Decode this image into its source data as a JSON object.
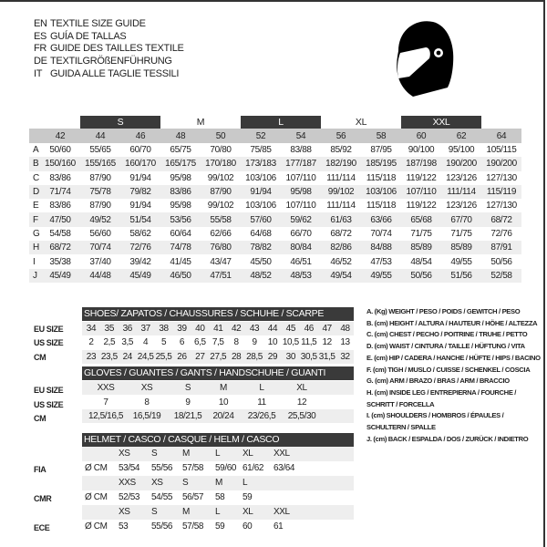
{
  "title": {
    "lines": [
      {
        "code": "EN",
        "text": "TEXTILE SIZE GUIDE"
      },
      {
        "code": "ES",
        "text": "GUÍA DE TALLAS"
      },
      {
        "code": "FR",
        "text": "GUIDE DES TAILLES TEXTILE"
      },
      {
        "code": "DE",
        "text": "TEXTILGRÖßENFÜHRUNG"
      },
      {
        "code": "IT",
        "text": "GUIDA ALLE TAGLIE TESSILI"
      }
    ]
  },
  "icon": "helmet-icon",
  "textile": {
    "bands": [
      {
        "label": "S",
        "dark": true
      },
      {
        "label": "M",
        "dark": false
      },
      {
        "label": "L",
        "dark": true
      },
      {
        "label": "XL",
        "dark": false
      },
      {
        "label": "XXL",
        "dark": true
      }
    ],
    "sizes": [
      "42",
      "44",
      "46",
      "48",
      "50",
      "52",
      "54",
      "56",
      "58",
      "60",
      "62",
      "64"
    ],
    "rows": [
      {
        "letter": "A",
        "values": [
          "50/60",
          "55/65",
          "60/70",
          "65/75",
          "70/80",
          "75/85",
          "83/88",
          "85/92",
          "87/95",
          "90/100",
          "95/100",
          "105/115"
        ]
      },
      {
        "letter": "B",
        "values": [
          "150/160",
          "155/165",
          "160/170",
          "165/175",
          "170/180",
          "173/183",
          "177/187",
          "182/190",
          "185/195",
          "187/198",
          "190/200",
          "190/200"
        ]
      },
      {
        "letter": "C",
        "values": [
          "83/86",
          "87/90",
          "91/94",
          "95/98",
          "99/102",
          "103/106",
          "107/110",
          "111/114",
          "115/118",
          "119/122",
          "123/126",
          "127/130"
        ]
      },
      {
        "letter": "D",
        "values": [
          "71/74",
          "75/78",
          "79/82",
          "83/86",
          "87/90",
          "91/94",
          "95/98",
          "99/102",
          "103/106",
          "107/110",
          "111/114",
          "115/119"
        ]
      },
      {
        "letter": "E",
        "values": [
          "83/86",
          "87/90",
          "91/94",
          "95/98",
          "99/102",
          "103/106",
          "107/110",
          "111/114",
          "115/118",
          "119/122",
          "123/126",
          "127/130"
        ]
      },
      {
        "letter": "F",
        "values": [
          "47/50",
          "49/52",
          "51/54",
          "53/56",
          "55/58",
          "57/60",
          "59/62",
          "61/63",
          "63/66",
          "65/68",
          "67/70",
          "68/72"
        ]
      },
      {
        "letter": "G",
        "values": [
          "54/58",
          "56/60",
          "58/62",
          "60/64",
          "62/66",
          "64/68",
          "66/70",
          "68/72",
          "70/74",
          "71/75",
          "71/75",
          "72/76"
        ]
      },
      {
        "letter": "H",
        "values": [
          "68/72",
          "70/74",
          "72/76",
          "74/78",
          "76/80",
          "78/82",
          "80/84",
          "82/86",
          "84/88",
          "85/89",
          "85/89",
          "87/91"
        ]
      },
      {
        "letter": "I",
        "values": [
          "35/38",
          "37/40",
          "39/42",
          "41/45",
          "43/47",
          "45/50",
          "46/51",
          "46/52",
          "47/53",
          "48/54",
          "49/55",
          "50/56"
        ]
      },
      {
        "letter": "J",
        "values": [
          "45/49",
          "44/48",
          "45/49",
          "46/50",
          "47/51",
          "48/52",
          "48/53",
          "49/54",
          "49/55",
          "50/56",
          "51/56",
          "52/58"
        ]
      }
    ]
  },
  "shoes": {
    "title": "SHOES/ ZAPATOS / CHAUSSURES / SCHUHE / SCARPE",
    "labels": [
      "EU SIZE",
      "US SIZE",
      "CM"
    ],
    "eu": [
      "34",
      "35",
      "36",
      "37",
      "38",
      "39",
      "40",
      "41",
      "42",
      "43",
      "44",
      "45",
      "46",
      "47",
      "48"
    ],
    "us": [
      "2",
      "2,5",
      "3,5",
      "4",
      "5",
      "6",
      "6,5",
      "7,5",
      "8",
      "9",
      "10",
      "10,5",
      "11,5",
      "12",
      "13"
    ],
    "cm": [
      "23",
      "23,5",
      "24",
      "24,5",
      "25,5",
      "26",
      "27",
      "27,5",
      "28",
      "28,5",
      "29",
      "30",
      "30,5",
      "31,5",
      "32"
    ]
  },
  "gloves": {
    "title": "GLOVES / GUANTES / GANTS / HANDSCHUHE / GUANTI",
    "labels": [
      "EU SIZE",
      "US SIZE",
      "CM"
    ],
    "eu": [
      "XXS",
      "XS",
      "S",
      "M",
      "L",
      "XL"
    ],
    "us": [
      "7",
      "8",
      "9",
      "10",
      "11",
      "12"
    ],
    "cm": [
      "12,5/16,5",
      "16,5/19",
      "18/21,5",
      "20/24",
      "23/26,5",
      "25,5/30"
    ]
  },
  "helmet": {
    "title": "HELMET / CASCO / CASQUE / HELM / CASCO",
    "unit": "Ø CM",
    "groups": [
      {
        "label": "FIA",
        "sizes": [
          "XS",
          "S",
          "M",
          "L",
          "XL",
          "XXL"
        ],
        "values": [
          "53/54",
          "55/56",
          "57/58",
          "59/60",
          "61/62",
          "63/64"
        ]
      },
      {
        "label": "CMR",
        "sizes": [
          "XXS",
          "XS",
          "S",
          "M",
          "L"
        ],
        "values": [
          "52/53",
          "54/55",
          "56/57",
          "58",
          "59"
        ]
      },
      {
        "label": "ECE",
        "sizes": [
          "XS",
          "S",
          "M",
          "L",
          "XL",
          "XXL"
        ],
        "values": [
          "53",
          "55/56",
          "57/58",
          "59",
          "60",
          "61"
        ]
      }
    ]
  },
  "legend": [
    "A. (Kg) WEIGHT / PESO / POIDS / GEWITCH / PESO",
    "B. (cm) HEIGHT / ALTURA / HAUTEUR / HÖHE / ALTEZZA",
    "C. (cm) CHEST / PECHO / POITRINE / TRUHE / PETTO",
    "D. (cm) WAIST / CINTURA / TAILLE / HÜFTUNG / VITA",
    "E. (cm) HIP / CADERA / HANCHE / HÜFTE / HIPS /  BACINO",
    "F.  (cm) TIGH / MUSLO / CUISSE / SCHENKEL / COSCIA",
    "G. (cm) ARM  / BRAZO / BRAS / ARM / BRACCIO",
    "H. (cm) INSIDE LEG / ENTREPIERNA / FOURCHE /",
    "SCHRITT / FORCELLA",
    "I.  (cm) SHOULDERS / HOMBROS / ÉPAULES /",
    "SCHULTERN / SPALLE",
    "J. (cm) BACK / ESPALDA / DOS / ZURÜCK / INDIETRO"
  ]
}
